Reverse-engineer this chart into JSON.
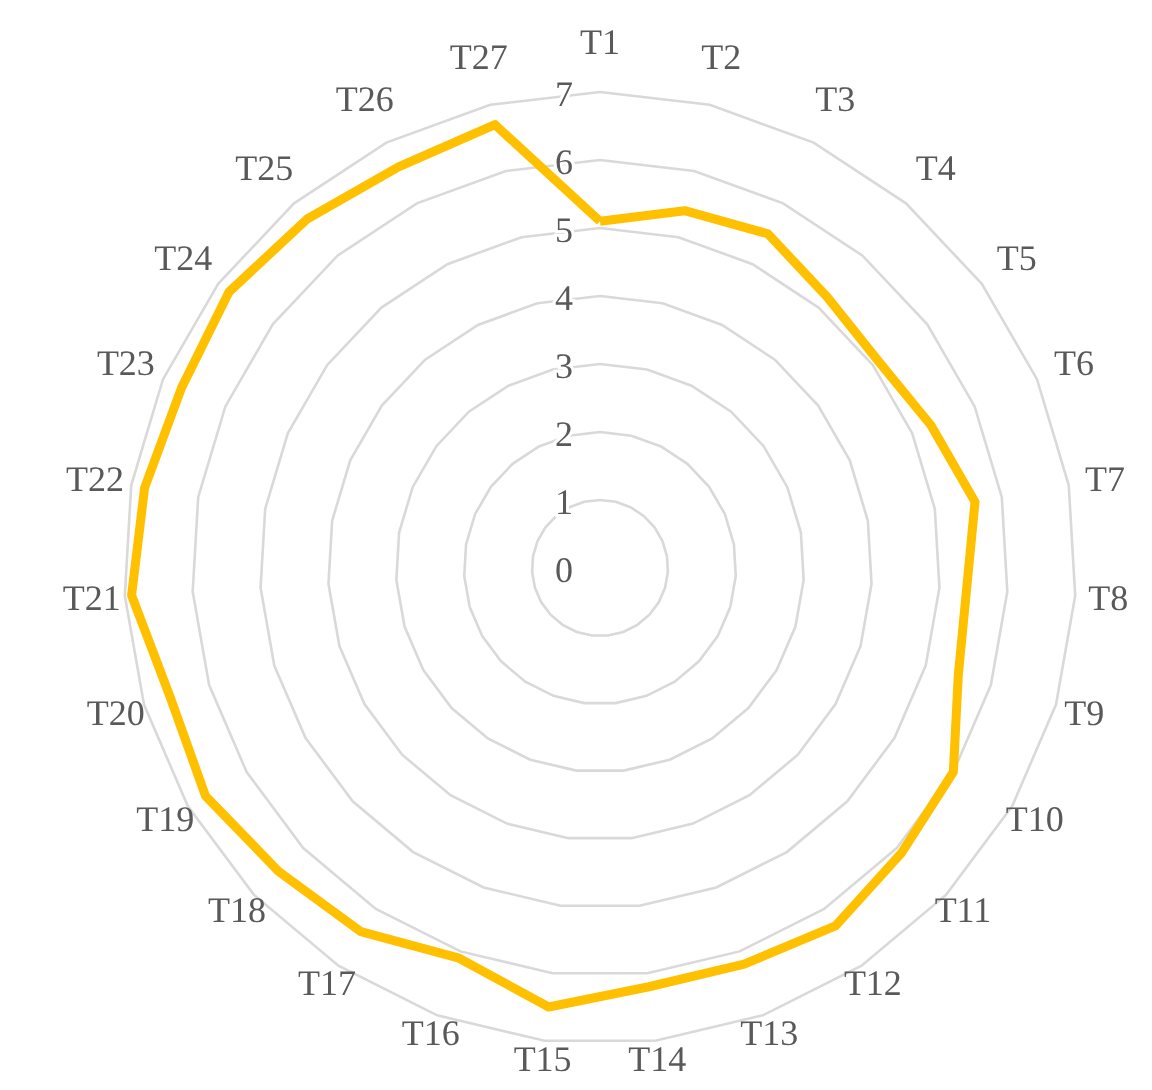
{
  "chart_data": {
    "type": "radar",
    "categories": [
      "T1",
      "T2",
      "T3",
      "T4",
      "T5",
      "T6",
      "T7",
      "T8",
      "T9",
      "T10",
      "T11",
      "T12",
      "T13",
      "T14",
      "T15",
      "T16",
      "T17",
      "T18",
      "T19",
      "T20",
      "T21",
      "T22",
      "T23",
      "T24",
      "T25",
      "T26",
      "T27"
    ],
    "series": [
      {
        "color": "#ffc000",
        "values": [
          5.1,
          5.4,
          5.5,
          5.2,
          5.1,
          5.3,
          5.6,
          5.4,
          5.5,
          6.0,
          6.1,
          6.3,
          6.2,
          6.2,
          6.5,
          6.1,
          6.4,
          6.5,
          6.7,
          6.6,
          6.9,
          6.8,
          6.7,
          6.8,
          6.7,
          6.6,
          6.7
        ]
      }
    ],
    "ylim": [
      0,
      7
    ],
    "yticks": [
      0,
      1,
      2,
      3,
      4,
      5,
      6,
      7
    ],
    "grid": true,
    "marker": "none",
    "line_style": "solid"
  }
}
